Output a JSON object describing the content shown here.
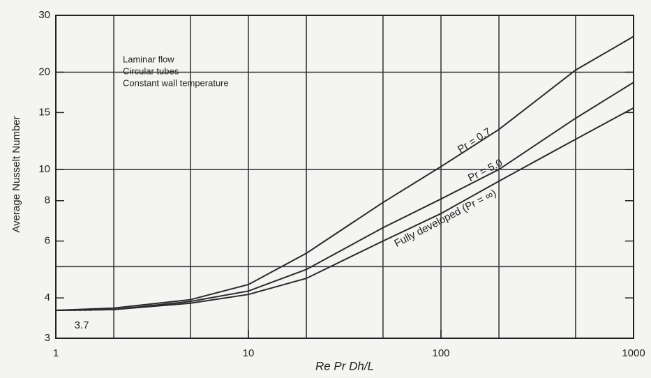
{
  "chart_data": {
    "type": "line",
    "x_label": "Re Pr Dh/L",
    "y_label": "Average Nusselt Number",
    "x": [
      1,
      2,
      5,
      10,
      20,
      50,
      100,
      200,
      500,
      1000
    ],
    "series": [
      {
        "name": "Pr = 0.7",
        "color": "#2a2a2a",
        "values": [
          3.66,
          3.72,
          3.95,
          4.4,
          5.5,
          7.9,
          10.2,
          13.3,
          20.3,
          25.8
        ]
      },
      {
        "name": "Pr = 5.0",
        "color": "#2a2a2a",
        "values": [
          3.66,
          3.68,
          3.9,
          4.2,
          4.9,
          6.6,
          8.1,
          10,
          14.4,
          18.6
        ]
      },
      {
        "name": "Fully developed (Pr = ∞)",
        "color": "#2a2a2a",
        "values": [
          3.66,
          3.68,
          3.85,
          4.1,
          4.6,
          6.0,
          7.3,
          9.2,
          12.4,
          15.5
        ]
      }
    ],
    "annotations": [
      "Laminar flow",
      "Circular tubes",
      "Constant wall temperature",
      "3.7"
    ],
    "limiting_value": 3.66,
    "xlim": [
      1,
      1000
    ],
    "ylim": [
      3,
      30
    ],
    "xticks": [
      1,
      10,
      100,
      1000
    ],
    "yticks": [
      3,
      4,
      6,
      8,
      10,
      15,
      20,
      30
    ],
    "xgrid": [
      2,
      5,
      10,
      20,
      50,
      100,
      200,
      500
    ],
    "ygrid": [
      5,
      10,
      20
    ],
    "log_x": true,
    "log_y": true,
    "grid": true
  }
}
